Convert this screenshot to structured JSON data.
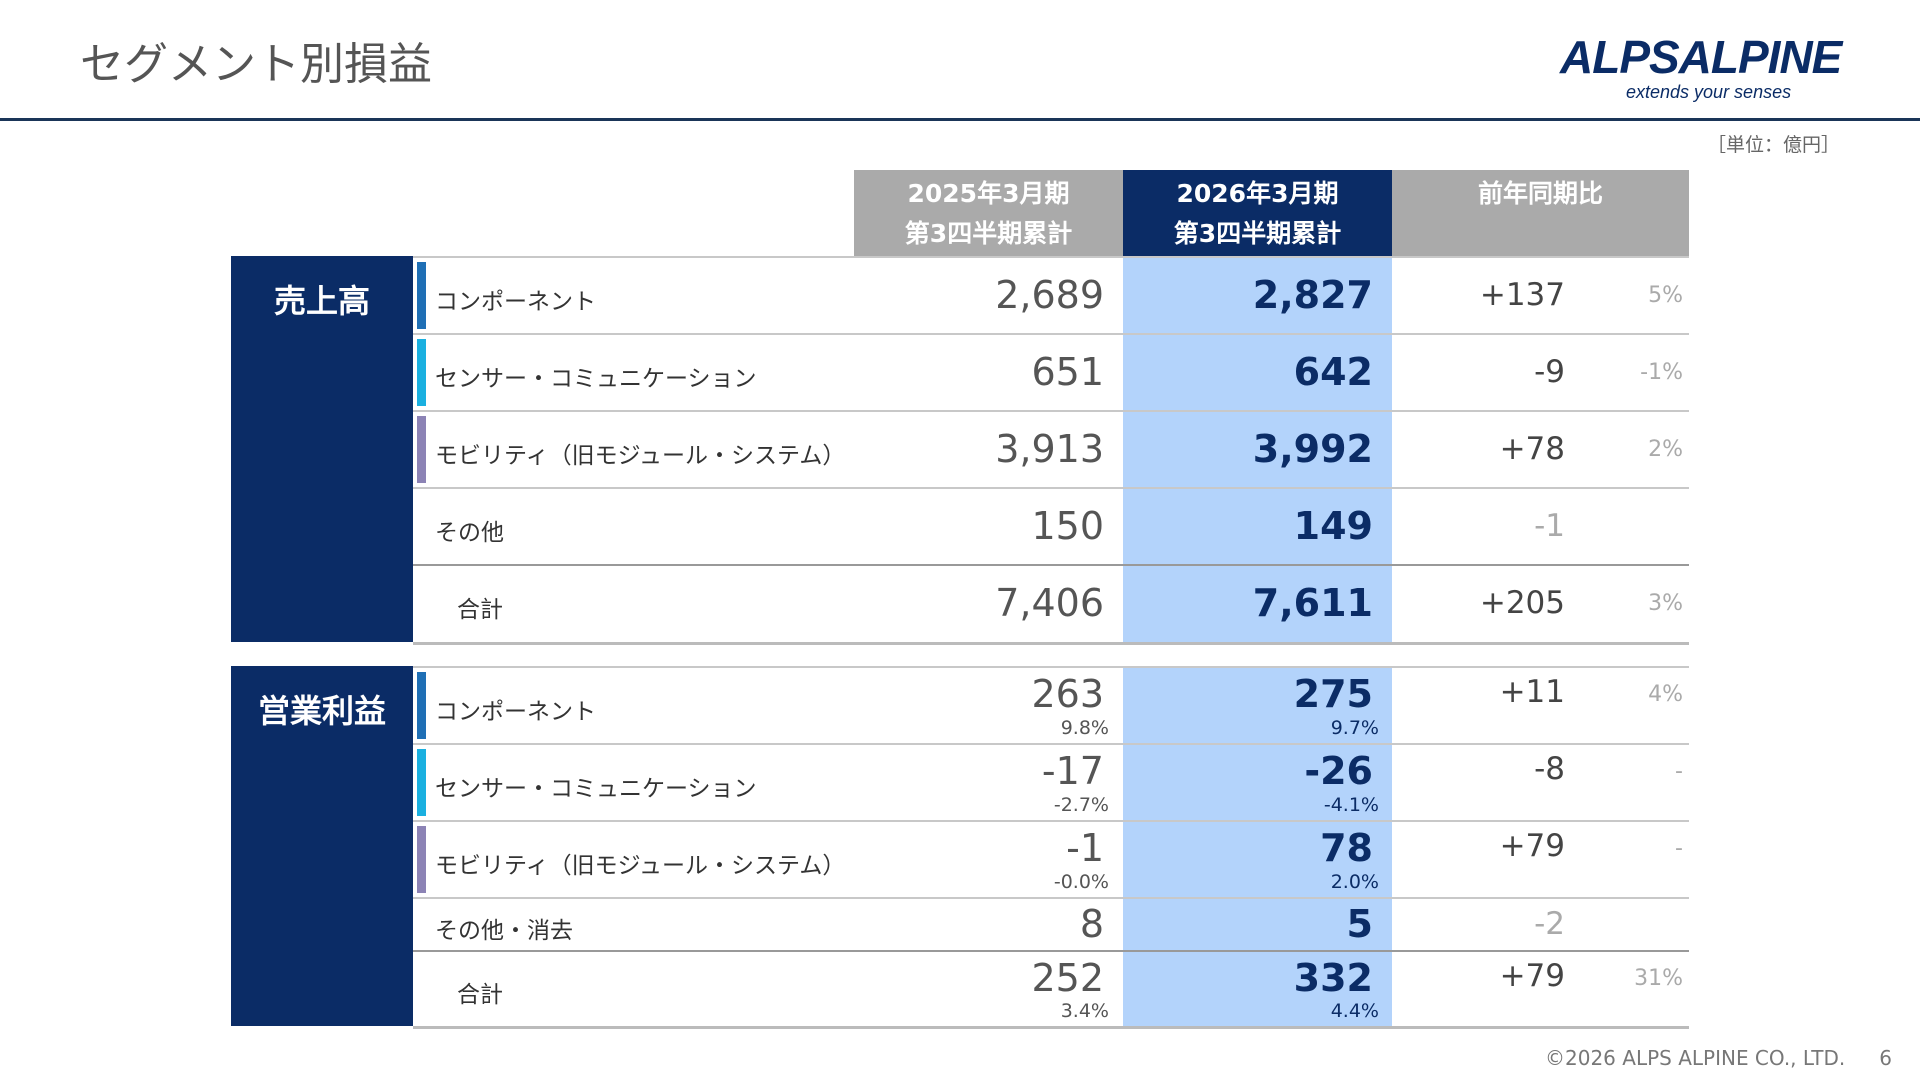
{
  "title": "セグメント別損益",
  "logo": {
    "name": "ALPSALPINE",
    "tagline": "extends your senses",
    "color": "#0b2c66"
  },
  "unit": "［単位：億円］",
  "headers": {
    "prev": [
      "2025年3月期",
      "第3四半期累計"
    ],
    "curr": [
      "2026年3月期",
      "第3四半期累計"
    ],
    "change": "前年同期比"
  },
  "colors": {
    "navy": "#0b2c66",
    "highlight": "#b3d3fb",
    "header_gray": "#aaaaaa",
    "component": "#1f6fb5",
    "sensor": "#1ab0e0",
    "mobility": "#8c83b5"
  },
  "sales": {
    "label": "売上高",
    "rows": [
      {
        "name": "コンポーネント",
        "prev": "2,689",
        "curr": "2,827",
        "diff": "+137",
        "pct": "5%",
        "stripe": "component"
      },
      {
        "name": "センサー・コミュニケーション",
        "prev": "651",
        "curr": "642",
        "diff": "-9",
        "pct": "-1%",
        "stripe": "sensor"
      },
      {
        "name": "モビリティ（旧モジュール・システム）",
        "prev": "3,913",
        "curr": "3,992",
        "diff": "+78",
        "pct": "2%",
        "stripe": "mobility"
      },
      {
        "name": "その他",
        "prev": "150",
        "curr": "149",
        "diff": "-1",
        "pct": "",
        "gray": true
      },
      {
        "name": "合計",
        "prev": "7,406",
        "curr": "7,611",
        "diff": "+205",
        "pct": "3%",
        "total": true
      }
    ]
  },
  "op": {
    "label": "営業利益",
    "rows": [
      {
        "name": "コンポーネント",
        "prev": "263",
        "prev_margin": "9.8%",
        "curr": "275",
        "curr_margin": "9.7%",
        "diff": "+11",
        "pct": "4%",
        "stripe": "component"
      },
      {
        "name": "センサー・コミュニケーション",
        "prev": "-17",
        "prev_margin": "-2.7%",
        "curr": "-26",
        "curr_margin": "-4.1%",
        "diff": "-8",
        "pct": "-",
        "stripe": "sensor"
      },
      {
        "name": "モビリティ（旧モジュール・システム）",
        "prev": "-1",
        "prev_margin": "-0.0%",
        "curr": "78",
        "curr_margin": "2.0%",
        "diff": "+79",
        "pct": "-",
        "stripe": "mobility"
      },
      {
        "name": "その他・消去",
        "prev": "8",
        "curr": "5",
        "diff": "-2",
        "pct": "",
        "gray": true,
        "short": true
      },
      {
        "name": "合計",
        "prev": "252",
        "prev_margin": "3.4%",
        "curr": "332",
        "curr_margin": "4.4%",
        "diff": "+79",
        "pct": "31%",
        "total": true
      }
    ]
  },
  "footer": {
    "copyright": "©2026 ALPS ALPINE CO., LTD.",
    "page": "6"
  }
}
